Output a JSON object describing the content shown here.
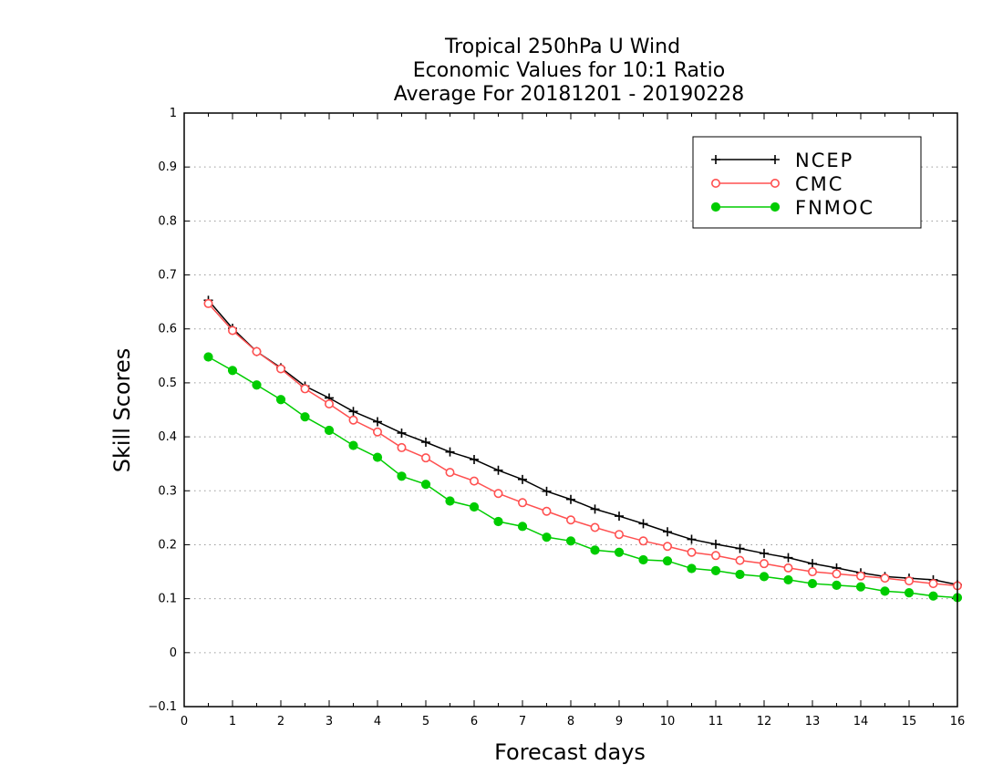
{
  "chart_data": {
    "type": "line",
    "title": [
      "Tropical 250hPa U Wind",
      "Economic Values for 10:1 Ratio",
      "Average For 20181201 - 20190228"
    ],
    "xlabel": "Forecast days",
    "ylabel": "Skill Scores",
    "xlim": [
      0,
      16
    ],
    "ylim": [
      -0.1,
      1
    ],
    "xticks": [
      "0",
      "1",
      "2",
      "3",
      "4",
      "5",
      "6",
      "7",
      "8",
      "9",
      "10",
      "11",
      "12",
      "13",
      "14",
      "15",
      "16"
    ],
    "yticks": [
      "−0.1",
      "0",
      "0.1",
      "0.2",
      "0.3",
      "0.4",
      "0.5",
      "0.6",
      "0.7",
      "0.8",
      "0.9",
      "1"
    ],
    "grid": "horizontal-dotted",
    "legend_position": "top-right",
    "x": [
      0.5,
      1,
      1.5,
      2,
      2.5,
      3,
      3.5,
      4,
      4.5,
      5,
      5.5,
      6,
      6.5,
      7,
      7.5,
      8,
      8.5,
      9,
      9.5,
      10,
      10.5,
      11,
      11.5,
      12,
      12.5,
      13,
      13.5,
      14,
      14.5,
      15,
      15.5,
      16
    ],
    "series": [
      {
        "name": "NCEP",
        "color": "#000000",
        "marker": "plus",
        "values": [
          0.653,
          0.601,
          0.558,
          0.528,
          0.494,
          0.472,
          0.447,
          0.428,
          0.407,
          0.39,
          0.372,
          0.358,
          0.338,
          0.321,
          0.299,
          0.284,
          0.266,
          0.253,
          0.239,
          0.224,
          0.21,
          0.201,
          0.193,
          0.184,
          0.176,
          0.165,
          0.157,
          0.148,
          0.141,
          0.138,
          0.135,
          0.126
        ]
      },
      {
        "name": "CMC",
        "color": "#ff5050",
        "marker": "open-circle",
        "values": [
          0.647,
          0.597,
          0.558,
          0.526,
          0.489,
          0.461,
          0.431,
          0.409,
          0.38,
          0.361,
          0.334,
          0.318,
          0.295,
          0.278,
          0.262,
          0.246,
          0.232,
          0.219,
          0.207,
          0.197,
          0.186,
          0.18,
          0.171,
          0.165,
          0.157,
          0.15,
          0.146,
          0.142,
          0.138,
          0.133,
          0.128,
          0.124
        ]
      },
      {
        "name": "FNMOC",
        "color": "#00cc00",
        "marker": "filled-circle",
        "values": [
          0.548,
          0.523,
          0.496,
          0.469,
          0.437,
          0.412,
          0.384,
          0.362,
          0.327,
          0.312,
          0.281,
          0.27,
          0.243,
          0.234,
          0.214,
          0.207,
          0.19,
          0.186,
          0.172,
          0.17,
          0.156,
          0.152,
          0.145,
          0.141,
          0.135,
          0.128,
          0.125,
          0.122,
          0.114,
          0.111,
          0.105,
          0.102
        ]
      }
    ]
  }
}
